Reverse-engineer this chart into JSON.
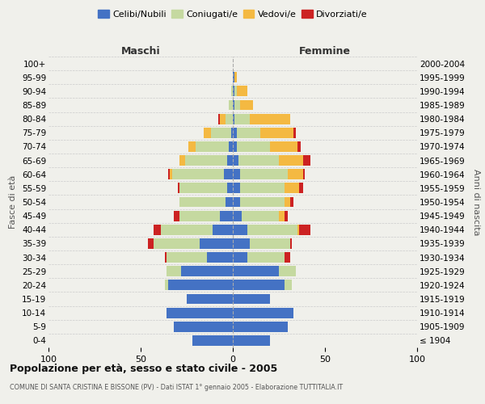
{
  "age_groups": [
    "100+",
    "95-99",
    "90-94",
    "85-89",
    "80-84",
    "75-79",
    "70-74",
    "65-69",
    "60-64",
    "55-59",
    "50-54",
    "45-49",
    "40-44",
    "35-39",
    "30-34",
    "25-29",
    "20-24",
    "15-19",
    "10-14",
    "5-9",
    "0-4"
  ],
  "birth_years": [
    "≤ 1904",
    "1905-1909",
    "1910-1914",
    "1915-1919",
    "1920-1924",
    "1925-1929",
    "1930-1934",
    "1935-1939",
    "1940-1944",
    "1945-1949",
    "1950-1954",
    "1955-1959",
    "1960-1964",
    "1965-1969",
    "1970-1974",
    "1975-1979",
    "1980-1984",
    "1985-1989",
    "1990-1994",
    "1995-1999",
    "2000-2004"
  ],
  "male": {
    "celibi": [
      0,
      0,
      0,
      0,
      0,
      1,
      2,
      3,
      5,
      3,
      4,
      7,
      11,
      18,
      14,
      28,
      35,
      25,
      36,
      32,
      22
    ],
    "coniugati": [
      0,
      0,
      1,
      2,
      4,
      11,
      18,
      23,
      28,
      26,
      25,
      22,
      28,
      25,
      22,
      8,
      2,
      0,
      0,
      0,
      0
    ],
    "vedovi": [
      0,
      0,
      0,
      0,
      3,
      4,
      4,
      3,
      1,
      0,
      0,
      0,
      0,
      0,
      0,
      0,
      0,
      0,
      0,
      0,
      0
    ],
    "divorziati": [
      0,
      0,
      0,
      0,
      1,
      0,
      0,
      0,
      1,
      1,
      0,
      3,
      4,
      3,
      1,
      0,
      0,
      0,
      0,
      0,
      0
    ]
  },
  "female": {
    "nubili": [
      0,
      1,
      1,
      1,
      1,
      2,
      2,
      3,
      4,
      4,
      4,
      5,
      8,
      9,
      8,
      25,
      28,
      20,
      33,
      30,
      20
    ],
    "coniugate": [
      0,
      0,
      1,
      3,
      8,
      13,
      18,
      22,
      26,
      24,
      24,
      20,
      27,
      22,
      20,
      9,
      4,
      0,
      0,
      0,
      0
    ],
    "vedove": [
      0,
      1,
      6,
      7,
      22,
      18,
      15,
      13,
      8,
      8,
      3,
      3,
      1,
      0,
      0,
      0,
      0,
      0,
      0,
      0,
      0
    ],
    "divorziate": [
      0,
      0,
      0,
      0,
      0,
      1,
      2,
      4,
      1,
      2,
      2,
      2,
      6,
      1,
      3,
      0,
      0,
      0,
      0,
      0,
      0
    ]
  },
  "colors": {
    "celibi": "#4472c4",
    "coniugati": "#c5d9a0",
    "vedovi": "#f4b942",
    "divorziati": "#cc2222"
  },
  "xlim": 100,
  "title": "Popolazione per età, sesso e stato civile - 2005",
  "subtitle": "COMUNE DI SANTA CRISTINA E BISSONE (PV) - Dati ISTAT 1° gennaio 2005 - Elaborazione TUTTITALIA.IT",
  "xlabel_left": "Maschi",
  "xlabel_right": "Femmine",
  "ylabel_left": "Fasce di età",
  "ylabel_right": "Anni di nascita",
  "legend_labels": [
    "Celibi/Nubili",
    "Coniugati/e",
    "Vedovi/e",
    "Divorziati/e"
  ],
  "bg_color": "#f0f0eb",
  "bar_bg": "#ffffff"
}
